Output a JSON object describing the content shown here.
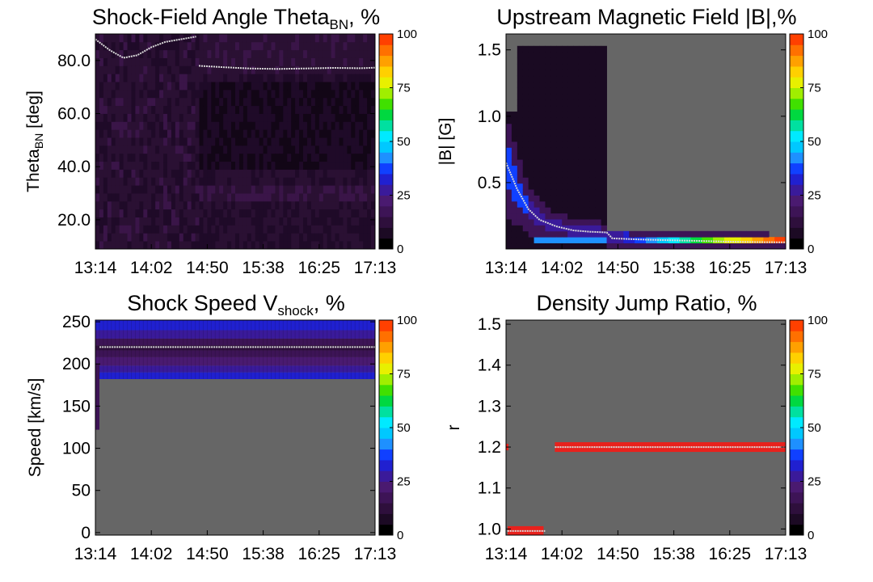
{
  "colorbar": {
    "ticks": [
      "0",
      "25",
      "50",
      "75",
      "100"
    ],
    "colors": [
      "#000000",
      "#1c0a24",
      "#2e0f3c",
      "#3d1456",
      "#4a1a70",
      "#3a1a9a",
      "#2020d0",
      "#1040ff",
      "#1e90ff",
      "#00c8ff",
      "#00eaff",
      "#00e0a0",
      "#00d840",
      "#40e000",
      "#a0ee00",
      "#e8f000",
      "#ffd000",
      "#ffa000",
      "#ff7000",
      "#ff4000"
    ]
  },
  "colors": {
    "no_data": "#666666",
    "trace": "#d9d9d9",
    "low_prob": "#2a1033"
  },
  "chart_data": [
    {
      "type": "heatmap",
      "title": "Shock-Field Angle Theta",
      "title_sub": "BN",
      "title_suffix": ", %",
      "ylabel": "Theta",
      "ylabel_sub": "BN",
      "ylabel_suffix": " [deg]",
      "x_ticks": [
        "13:14",
        "14:02",
        "14:50",
        "15:38",
        "16:25",
        "17:13"
      ],
      "y_ticks": [
        "20.0",
        "40.0",
        "60.0",
        "80.0"
      ],
      "y_tick_values": [
        20,
        40,
        60,
        80
      ],
      "ylim": [
        9,
        90
      ],
      "colorbar_ticks": [
        "0",
        "25",
        "50",
        "75",
        "100"
      ],
      "probability_range": [
        0,
        12
      ],
      "median_trace": {
        "x_fraction": [
          0.0,
          0.05,
          0.1,
          0.15,
          0.2,
          0.25,
          0.36,
          0.37,
          0.45,
          0.55,
          0.65,
          0.75,
          0.85,
          0.95,
          1.0
        ],
        "y": [
          88,
          84,
          81,
          82,
          85,
          87,
          89,
          78,
          77.5,
          77,
          76.8,
          77,
          77.2,
          77.1,
          77.3
        ]
      }
    },
    {
      "type": "heatmap",
      "title": "Upstream Magnetic Field |B|,%",
      "ylabel": "|B| [G]",
      "x_ticks": [
        "13:14",
        "14:02",
        "14:50",
        "15:38",
        "16:25",
        "17:13"
      ],
      "y_ticks": [
        "0.5",
        "1.0",
        "1.5"
      ],
      "y_tick_values": [
        0.5,
        1.0,
        1.5
      ],
      "ylim": [
        0,
        1.62
      ],
      "colorbar_ticks": [
        "0",
        "25",
        "50",
        "75",
        "100"
      ],
      "probability_range": [
        0,
        100
      ],
      "median_trace": {
        "x_fraction": [
          0.0,
          0.04,
          0.08,
          0.12,
          0.18,
          0.24,
          0.3,
          0.36,
          0.38,
          0.5,
          0.6,
          0.7,
          0.8,
          0.9,
          1.0
        ],
        "y": [
          0.65,
          0.45,
          0.3,
          0.22,
          0.17,
          0.14,
          0.13,
          0.125,
          0.08,
          0.07,
          0.065,
          0.06,
          0.055,
          0.052,
          0.05
        ]
      }
    },
    {
      "type": "heatmap",
      "title": "Shock Speed V",
      "title_sub": "shock",
      "title_suffix": ", %",
      "ylabel": "Speed [km/s]",
      "x_ticks": [
        "13:14",
        "14:02",
        "14:50",
        "15:38",
        "16:25",
        "17:13"
      ],
      "y_ticks": [
        "0",
        "50",
        "100",
        "150",
        "200",
        "250"
      ],
      "y_tick_values": [
        0,
        50,
        100,
        150,
        200,
        250
      ],
      "ylim": [
        -3,
        252
      ],
      "colorbar_ticks": [
        "0",
        "25",
        "50",
        "75",
        "100"
      ],
      "probability_range": [
        0,
        25
      ],
      "median_trace": {
        "x_fraction": [
          0.015,
          1.0
        ],
        "y": [
          220,
          220
        ]
      }
    },
    {
      "type": "heatmap",
      "title": "Density Jump Ratio, %",
      "ylabel": "r",
      "x_ticks": [
        "13:14",
        "14:02",
        "14:50",
        "15:38",
        "16:25",
        "17:13"
      ],
      "y_ticks": [
        "1.0",
        "1.1",
        "1.2",
        "1.3",
        "1.4",
        "1.5"
      ],
      "y_tick_values": [
        1.0,
        1.1,
        1.2,
        1.3,
        1.4,
        1.5
      ],
      "ylim": [
        0.985,
        1.51
      ],
      "colorbar_ticks": [
        "0",
        "25",
        "50",
        "75",
        "100"
      ],
      "probability_range": [
        0,
        100
      ],
      "median_trace": {
        "segments": [
          {
            "x_fraction": [
              0.0,
              0.14
            ],
            "y": [
              0.995,
              0.995
            ]
          },
          {
            "x_fraction": [
              0.14,
              1.0
            ],
            "y": [
              1.2,
              1.2
            ]
          }
        ]
      }
    }
  ]
}
